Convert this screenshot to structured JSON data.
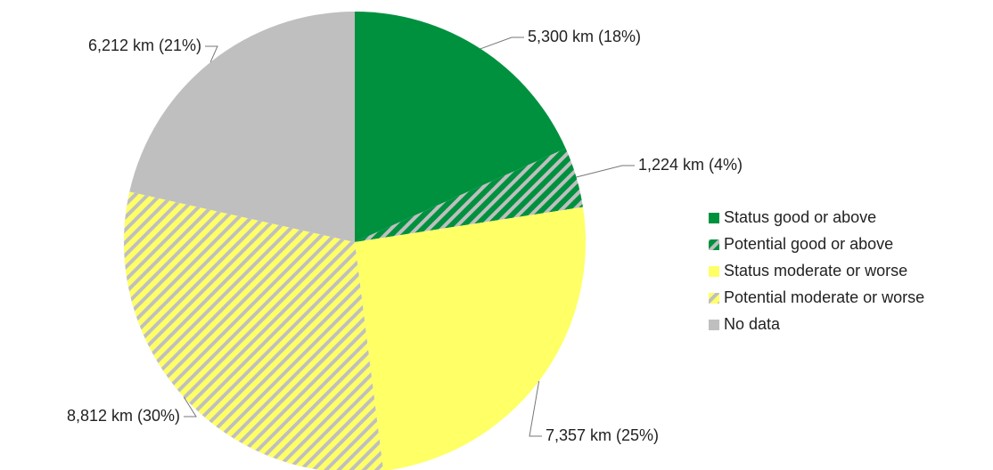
{
  "chart_data": {
    "type": "pie",
    "categories": [
      "Status good or above",
      "Potential good or above",
      "Status moderate or worse",
      "Potential moderate or worse",
      "No data"
    ],
    "values": [
      5300,
      1224,
      7357,
      8812,
      6212
    ],
    "value_labels": [
      "5,300 km (18%)",
      "1,224 km (4%)",
      "7,357 km (25%)",
      "8,812 km (30%)",
      "6,212 km (21%)"
    ],
    "colors": [
      "#00913f",
      "#00913f",
      "#ffff66",
      "#ffff66",
      "#bfbfbf"
    ],
    "hatched": [
      false,
      true,
      false,
      true,
      false
    ],
    "hatch_color": "#bfbfbf",
    "legend": "right"
  }
}
